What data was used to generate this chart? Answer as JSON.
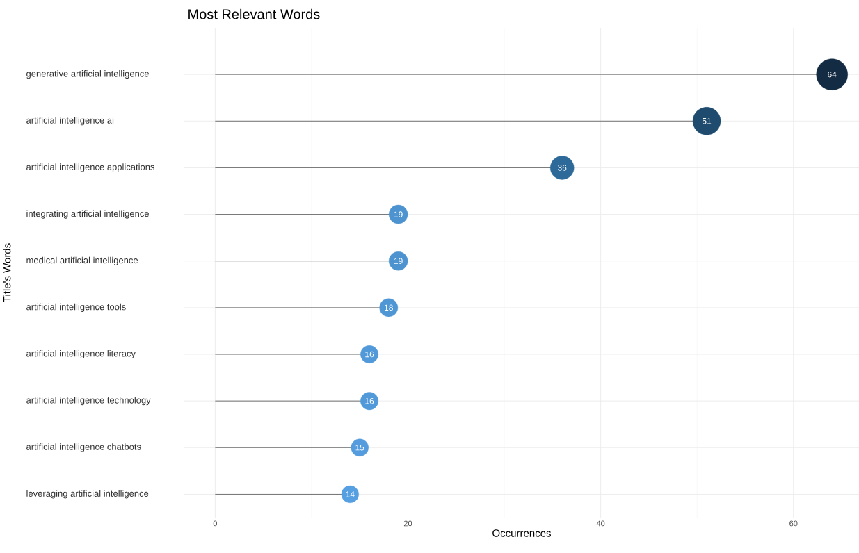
{
  "chart_data": {
    "type": "lollipop",
    "title": "Most Relevant Words",
    "xlabel": "Occurrences",
    "ylabel": "Title's Words",
    "orientation": "horizontal",
    "categories": [
      "generative artificial intelligence",
      "artificial intelligence ai",
      "artificial intelligence applications",
      "integrating artificial intelligence",
      "medical artificial intelligence",
      "artificial intelligence tools",
      "artificial intelligence literacy",
      "artificial intelligence technology",
      "artificial intelligence chatbots",
      "leveraging artificial intelligence"
    ],
    "values": [
      64,
      51,
      36,
      19,
      19,
      18,
      16,
      16,
      15,
      14
    ],
    "sizes": [
      1,
      0.79,
      0.57,
      0.36,
      0.36,
      0.34,
      0.32,
      0.32,
      0.31,
      0.3
    ],
    "colors": [
      "#132b43",
      "#1f4b6e",
      "#2e6a99",
      "#4d93d0",
      "#4d93d0",
      "#4f96d5",
      "#5299da",
      "#5299da",
      "#549cdd",
      "#56a0e2"
    ],
    "xlim": [
      -3.2,
      66.8
    ],
    "xticks": [
      0,
      20,
      40,
      60
    ],
    "grid": true,
    "data_labels": true
  }
}
